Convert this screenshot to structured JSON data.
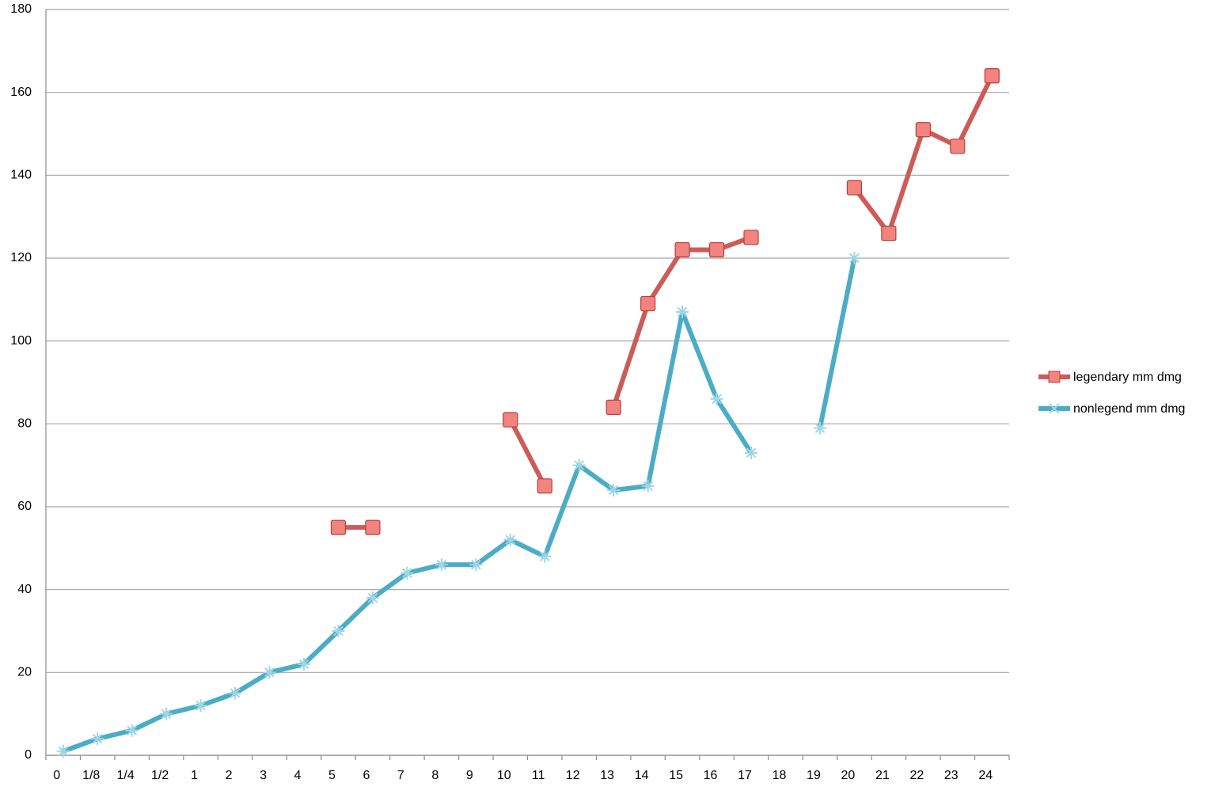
{
  "chart_data": {
    "type": "line",
    "categories": [
      "0",
      "1/8",
      "1/4",
      "1/2",
      "1",
      "2",
      "3",
      "4",
      "5",
      "6",
      "7",
      "8",
      "9",
      "10",
      "11",
      "12",
      "13",
      "14",
      "15",
      "16",
      "17",
      "18",
      "19",
      "20",
      "21",
      "22",
      "23",
      "24"
    ],
    "series": [
      {
        "name": "legendary mm dmg",
        "color": "#cd5b57",
        "marker": "square",
        "values": [
          null,
          null,
          null,
          null,
          null,
          null,
          null,
          null,
          55,
          55,
          null,
          null,
          null,
          81,
          65,
          null,
          84,
          109,
          122,
          122,
          125,
          null,
          null,
          137,
          126,
          151,
          147,
          164
        ]
      },
      {
        "name": "nonlegend mm dmg",
        "color": "#4bacc6",
        "marker": "star",
        "values": [
          1,
          4,
          6,
          10,
          12,
          15,
          20,
          22,
          30,
          38,
          44,
          46,
          46,
          52,
          48,
          70,
          64,
          65,
          107,
          86,
          73,
          null,
          79,
          120,
          null,
          null,
          null,
          null
        ]
      }
    ],
    "ylim": [
      0,
      180
    ],
    "yticks": [
      0,
      20,
      40,
      60,
      80,
      100,
      120,
      140,
      160,
      180
    ],
    "grid": true,
    "legend": "right"
  }
}
